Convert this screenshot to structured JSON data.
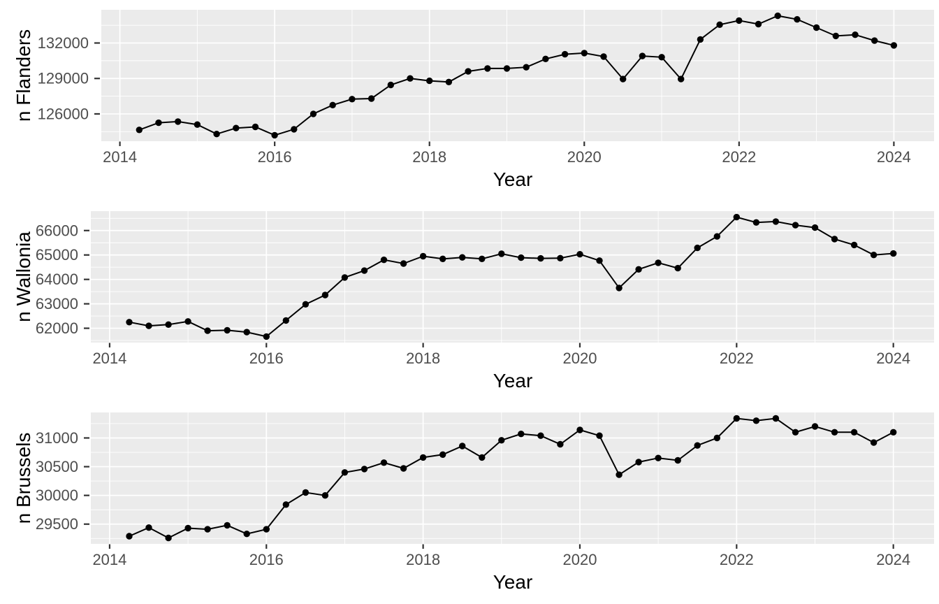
{
  "style": {
    "background": "#FFFFFF",
    "panel_bg": "#EBEBEB",
    "grid_color": "#FFFFFF",
    "tick_mark_color": "#333333",
    "tick_label_color": "#4D4D4D",
    "axis_title_color": "#000000",
    "line_color": "#000000",
    "point_color": "#000000"
  },
  "chart_data": [
    {
      "type": "line",
      "region": "Flanders",
      "xlabel": "Year",
      "ylabel": "n Flanders",
      "x_ticks": [
        2014,
        2016,
        2018,
        2020,
        2022,
        2024
      ],
      "x_minor": [
        2015,
        2017,
        2019,
        2021,
        2023
      ],
      "y_ticks": [
        126000,
        129000,
        132000
      ],
      "y_minor": [
        124500,
        127500,
        130500,
        133500
      ],
      "xlim": [
        2013.76,
        2024.52
      ],
      "ylim": [
        123690,
        134810
      ],
      "grid": true,
      "legend": "none",
      "x": [
        2014.25,
        2014.5,
        2014.75,
        2015.0,
        2015.25,
        2015.5,
        2015.75,
        2016.0,
        2016.25,
        2016.5,
        2016.75,
        2017.0,
        2017.25,
        2017.5,
        2017.75,
        2018.0,
        2018.25,
        2018.5,
        2018.75,
        2019.0,
        2019.25,
        2019.5,
        2019.75,
        2020.0,
        2020.25,
        2020.5,
        2020.75,
        2021.0,
        2021.25,
        2021.5,
        2021.75,
        2022.0,
        2022.25,
        2022.5,
        2022.75,
        2023.0,
        2023.25,
        2023.5,
        2023.75,
        2024.0
      ],
      "y": [
        124650,
        125250,
        125350,
        125100,
        124300,
        124800,
        124900,
        124200,
        124700,
        126000,
        126750,
        127250,
        127300,
        128450,
        129000,
        128800,
        128700,
        129600,
        129850,
        129850,
        129950,
        130650,
        131050,
        131150,
        130850,
        128950,
        130900,
        130800,
        128950,
        132300,
        133550,
        133900,
        133600,
        134300,
        134000,
        133300,
        132600,
        132700,
        132200,
        131800
      ]
    },
    {
      "type": "line",
      "region": "Wallonia",
      "xlabel": "Year",
      "ylabel": "n Wallonia",
      "x_ticks": [
        2014,
        2016,
        2018,
        2020,
        2022,
        2024
      ],
      "x_minor": [
        2015,
        2017,
        2019,
        2021,
        2023
      ],
      "y_ticks": [
        62000,
        63000,
        64000,
        65000,
        66000
      ],
      "y_minor": [
        61500,
        62500,
        63500,
        64500,
        65500,
        66500
      ],
      "xlim": [
        2013.76,
        2024.52
      ],
      "ylim": [
        61415,
        66795
      ],
      "grid": true,
      "legend": "none",
      "x": [
        2014.25,
        2014.5,
        2014.75,
        2015.0,
        2015.25,
        2015.5,
        2015.75,
        2016.0,
        2016.25,
        2016.5,
        2016.75,
        2017.0,
        2017.25,
        2017.5,
        2017.75,
        2018.0,
        2018.25,
        2018.5,
        2018.75,
        2019.0,
        2019.25,
        2019.5,
        2019.75,
        2020.0,
        2020.25,
        2020.5,
        2020.75,
        2021.0,
        2021.25,
        2021.5,
        2021.75,
        2022.0,
        2022.25,
        2022.5,
        2022.75,
        2023.0,
        2023.25,
        2023.5,
        2023.75,
        2024.0
      ],
      "y": [
        62250,
        62100,
        62150,
        62280,
        61900,
        61920,
        61840,
        61660,
        62320,
        62980,
        63360,
        64080,
        64360,
        64800,
        64650,
        64950,
        64840,
        64900,
        64840,
        65050,
        64890,
        64860,
        64870,
        65030,
        64770,
        63650,
        64410,
        64680,
        64460,
        65290,
        65760,
        66550,
        66330,
        66370,
        66220,
        66120,
        65650,
        65410,
        65000,
        65060
      ]
    },
    {
      "type": "line",
      "region": "Brussels",
      "xlabel": "Year",
      "ylabel": "n Brussels",
      "x_ticks": [
        2014,
        2016,
        2018,
        2020,
        2022,
        2024
      ],
      "x_minor": [
        2015,
        2017,
        2019,
        2021,
        2023
      ],
      "y_ticks": [
        29500,
        30000,
        30500,
        31000
      ],
      "y_minor": [
        29250,
        29750,
        30250,
        30750,
        31250
      ],
      "xlim": [
        2013.76,
        2024.52
      ],
      "ylim": [
        29156,
        31444
      ],
      "grid": true,
      "legend": "none",
      "x": [
        2014.25,
        2014.5,
        2014.75,
        2015.0,
        2015.25,
        2015.5,
        2015.75,
        2016.0,
        2016.25,
        2016.5,
        2016.75,
        2017.0,
        2017.25,
        2017.5,
        2017.75,
        2018.0,
        2018.25,
        2018.5,
        2018.75,
        2019.0,
        2019.25,
        2019.5,
        2019.75,
        2020.0,
        2020.25,
        2020.5,
        2020.75,
        2021.0,
        2021.25,
        2021.5,
        2021.75,
        2022.0,
        2022.25,
        2022.5,
        2022.75,
        2023.0,
        2023.25,
        2023.5,
        2023.75,
        2024.0
      ],
      "y": [
        29290,
        29440,
        29260,
        29430,
        29410,
        29480,
        29330,
        29410,
        29840,
        30050,
        30000,
        30400,
        30460,
        30570,
        30470,
        30660,
        30710,
        30860,
        30660,
        30960,
        31070,
        31040,
        30890,
        31140,
        31040,
        30360,
        30580,
        30650,
        30610,
        30870,
        31000,
        31340,
        31300,
        31340,
        31100,
        31200,
        31100,
        31100,
        30920,
        31100
      ]
    }
  ]
}
